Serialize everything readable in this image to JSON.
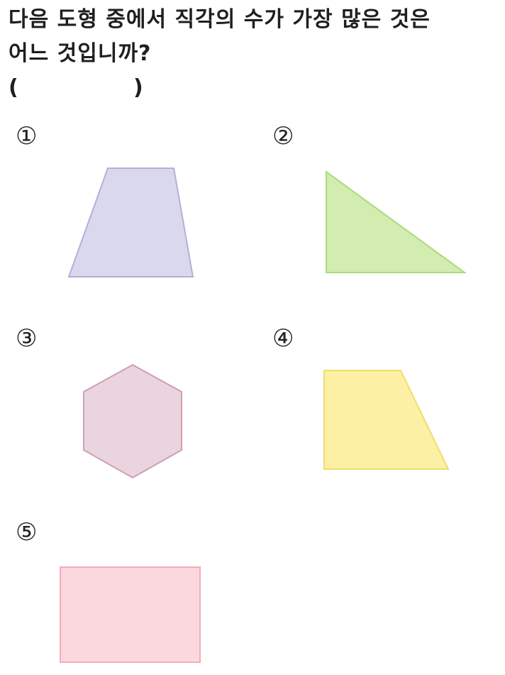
{
  "question": {
    "line1": "다음 도형 중에서 직각의 수가 가장 많은 것은",
    "line2": "어느 것입니까?"
  },
  "answer": {
    "open": "(",
    "close": ")"
  },
  "choices": [
    {
      "number": "①",
      "shape": "trapezoid",
      "fill": "#dad8ec",
      "stroke": "#b3b0d8"
    },
    {
      "number": "②",
      "shape": "right-triangle",
      "fill": "#d3ecb0",
      "stroke": "#a9dc7e"
    },
    {
      "number": "③",
      "shape": "hexagon",
      "fill": "#ead5de",
      "stroke": "#cf9db4"
    },
    {
      "number": "④",
      "shape": "right-trapezoid",
      "fill": "#fbf0a3",
      "stroke": "#f3dc6e"
    },
    {
      "number": "⑤",
      "shape": "rectangle",
      "fill": "#fbd8de",
      "stroke": "#f2aebb"
    }
  ]
}
